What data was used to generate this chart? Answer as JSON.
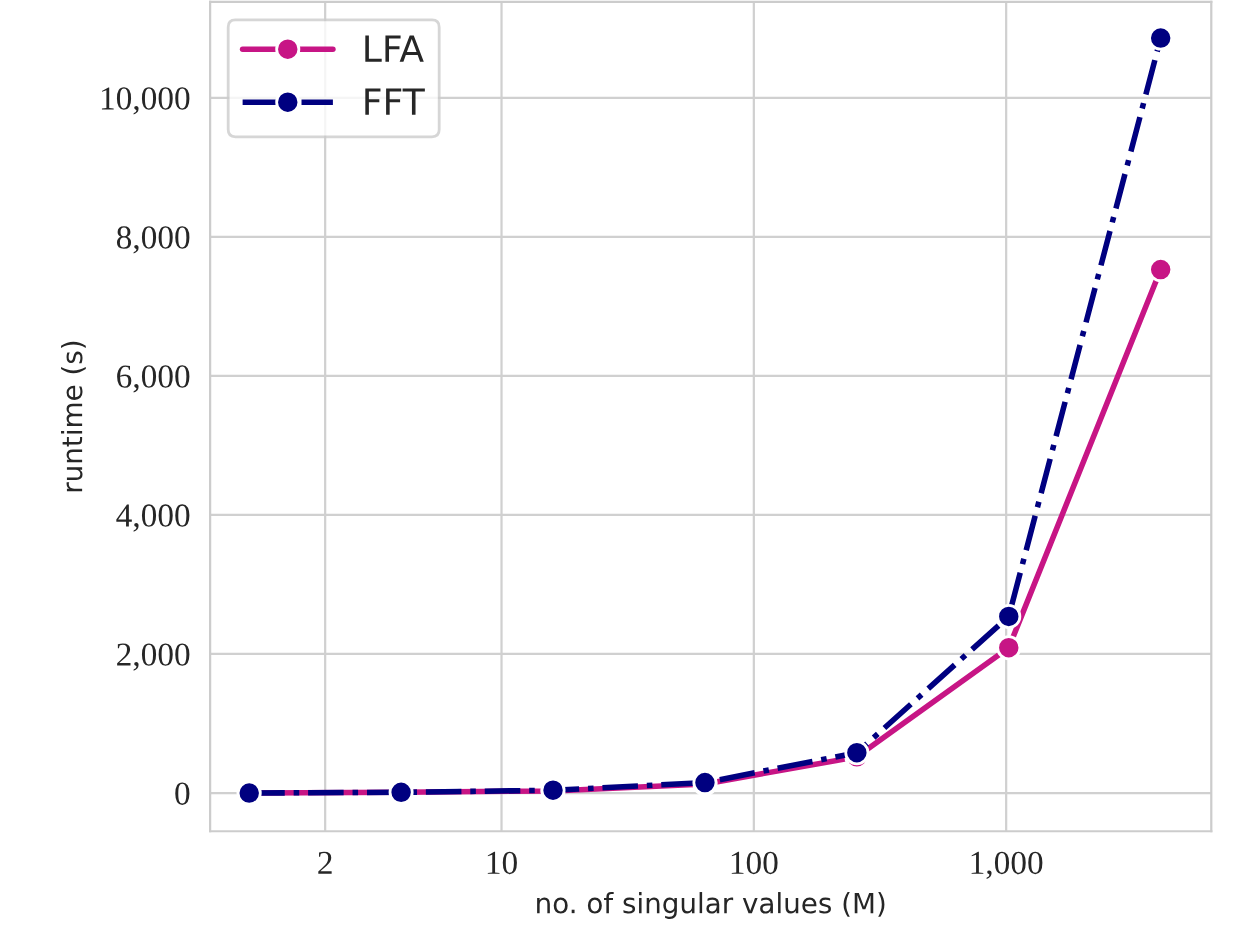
{
  "chart_data": {
    "type": "line",
    "xlabel": "no. of singular values (M)",
    "ylabel": "runtime (s)",
    "x": [
      1,
      4,
      16,
      64,
      256,
      1024,
      4096
    ],
    "series": [
      {
        "name": "LFA",
        "color": "#c71585",
        "line_style": "solid",
        "values": [
          0,
          10,
          30,
          130,
          520,
          2090,
          7530
        ]
      },
      {
        "name": "FFT",
        "color": "#000080",
        "line_style": "dashdot",
        "values": [
          0,
          10,
          40,
          150,
          580,
          2540,
          10860
        ]
      }
    ],
    "log": "x",
    "xlim": [
      0.7,
      6500
    ],
    "ylim": [
      -550,
      11380
    ],
    "xticks": [
      2,
      10,
      100,
      {
        "value": 1000,
        "label": "1,000"
      }
    ],
    "yticks": [
      0,
      {
        "value": 2000,
        "label": "2,000"
      },
      {
        "value": 4000,
        "label": "4,000"
      },
      {
        "value": 6000,
        "label": "6,000"
      },
      {
        "value": 8000,
        "label": "8,000"
      },
      {
        "value": 10000,
        "label": "10,000"
      }
    ],
    "grid": true,
    "legend": "top left",
    "marker": "circle"
  }
}
